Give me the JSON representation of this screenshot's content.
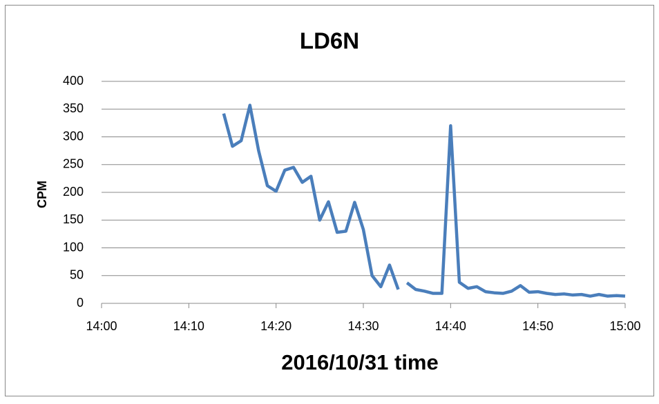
{
  "chart_data": {
    "type": "line",
    "title": "LD6N",
    "x_label": "2016/10/31 time",
    "y_label": "CPM",
    "x": [
      "14:14",
      "14:15",
      "14:16",
      "14:17",
      "14:18",
      "14:19",
      "14:20",
      "14:21",
      "14:22",
      "14:23",
      "14:24",
      "14:25",
      "14:26",
      "14:27",
      "14:28",
      "14:29",
      "14:30",
      "14:31",
      "14:32",
      "14:33",
      "14:34",
      "14:35",
      "14:35",
      "14:36",
      "14:37",
      "14:38",
      "14:39",
      "14:40",
      "14:41",
      "14:42",
      "14:43",
      "14:44",
      "14:45",
      "14:46",
      "14:47",
      "14:48",
      "14:49",
      "14:50",
      "14:51",
      "14:52",
      "14:53",
      "14:54",
      "14:55",
      "14:56",
      "14:57",
      "14:58",
      "14:59",
      "15:00"
    ],
    "series": [
      {
        "name": "CPM",
        "color": "#4a7ebb",
        "values": [
          342,
          283,
          293,
          357,
          275,
          212,
          202,
          240,
          245,
          218,
          229,
          150,
          183,
          128,
          130,
          182,
          133,
          50,
          30,
          69,
          25,
          null,
          37,
          25,
          22,
          18,
          18,
          320,
          38,
          27,
          30,
          21,
          19,
          18,
          22,
          32,
          20,
          21,
          18,
          16,
          17,
          15,
          16,
          13,
          16,
          13,
          14,
          13
        ]
      }
    ],
    "xlim": [
      "14:00",
      "15:00"
    ],
    "xticks": [
      "14:00",
      "14:10",
      "14:20",
      "14:30",
      "14:40",
      "14:50",
      "15:00"
    ],
    "ylim": [
      0,
      400
    ],
    "yticks": [
      0,
      50,
      100,
      150,
      200,
      250,
      300,
      350,
      400
    ],
    "grid": true
  }
}
